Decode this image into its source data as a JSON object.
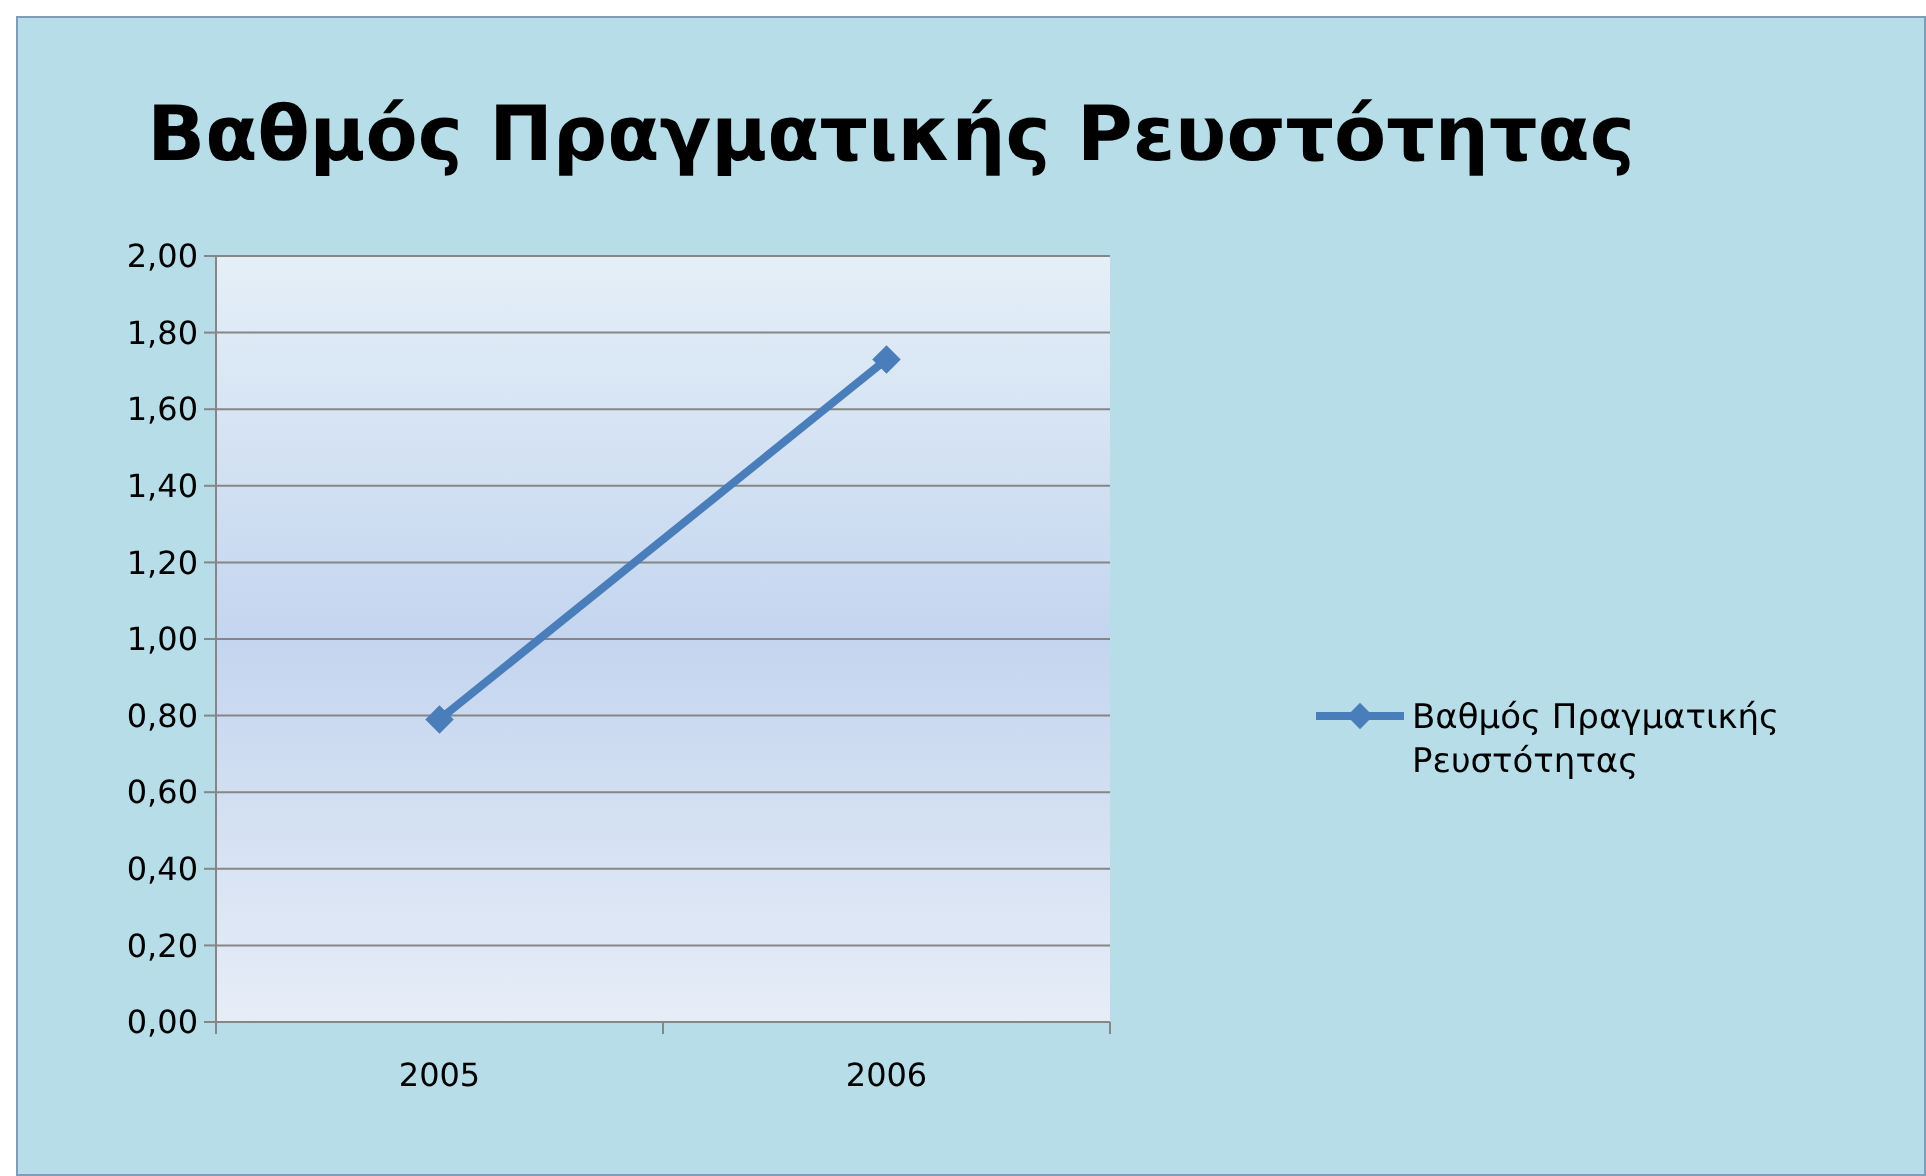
{
  "chart_data": {
    "type": "line",
    "title": "Βαθμός Πραγματικής Ρευστότητας",
    "categories": [
      "2005",
      "2006"
    ],
    "series": [
      {
        "name": "Βαθμός Πραγματικής Ρευστότητας",
        "color": "#4a7ebb",
        "values": [
          0.79,
          1.73
        ]
      }
    ],
    "ylim": [
      0,
      2
    ],
    "yticks": [
      {
        "value": 0,
        "label": "0,00"
      },
      {
        "value": 0.2,
        "label": "0,20"
      },
      {
        "value": 0.4,
        "label": "0,40"
      },
      {
        "value": 0.6,
        "label": "0,60"
      },
      {
        "value": 0.8,
        "label": "0,80"
      },
      {
        "value": 1,
        "label": "1,00"
      },
      {
        "value": 1.2,
        "label": "1,20"
      },
      {
        "value": 1.4,
        "label": "1,40"
      },
      {
        "value": 1.6,
        "label": "1,60"
      },
      {
        "value": 1.8,
        "label": "1,80"
      },
      {
        "value": 2,
        "label": "2,00"
      }
    ],
    "grid": "y",
    "legend": "right",
    "marker": "diamond",
    "line_style": "solid"
  }
}
